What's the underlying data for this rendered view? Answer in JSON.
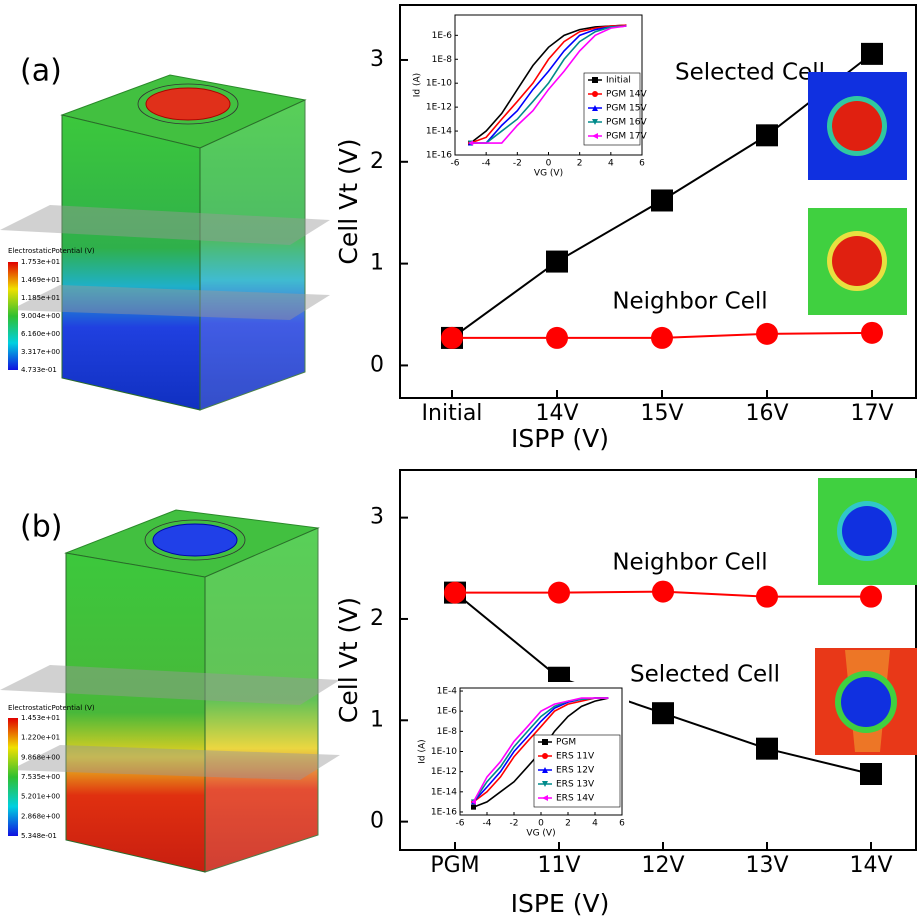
{
  "panels": [
    {
      "label": "(a)",
      "colorbar": {
        "title": "ElectrostaticPotential (V)",
        "labels": [
          "1.753e+01",
          "1.469e+01",
          "1.185e+01",
          "9.004e+00",
          "6.160e+00",
          "3.317e+00",
          "4.733e-01"
        ]
      }
    },
    {
      "label": "(b)",
      "colorbar": {
        "title": "ElectrostaticPotential (V)",
        "labels": [
          "1.453e+01",
          "1.220e+01",
          "9.868e+00",
          "7.535e+00",
          "5.201e+00",
          "2.868e+00",
          "5.348e-01"
        ]
      }
    }
  ],
  "chart_data": [
    {
      "type": "line",
      "xlabel": "ISPP (V)",
      "ylabel": "Cell Vt (V)",
      "categories": [
        "Initial",
        "14V",
        "15V",
        "16V",
        "17V"
      ],
      "ylim": [
        -0.32,
        3.54
      ],
      "yticks": [
        0,
        1,
        2,
        3
      ],
      "series": [
        {
          "name": "Selected Cell",
          "color": "#000000",
          "marker": "square",
          "values": [
            0.27,
            1.02,
            1.62,
            2.26,
            3.06
          ]
        },
        {
          "name": "Neighbor Cell",
          "color": "#ff0000",
          "marker": "circle",
          "values": [
            0.27,
            0.27,
            0.27,
            0.31,
            0.32
          ]
        }
      ]
    },
    {
      "type": "logline",
      "xlabel": "VG (V)",
      "ylabel": "Id (A)",
      "legend": "lower right",
      "x": [
        -5,
        -4,
        -3,
        -2,
        -1,
        0,
        1,
        2,
        3,
        4,
        5
      ],
      "xlim": [
        -6,
        6
      ],
      "xticks": [
        -6,
        -4,
        -2,
        0,
        2,
        4,
        6
      ],
      "ylog": true,
      "ylim": [
        1e-16,
        5e-05
      ],
      "yticks": [
        {
          "value": 1e-06,
          "label": "1E-6"
        },
        {
          "value": 1e-08,
          "label": "1E-8"
        },
        {
          "value": 1e-10,
          "label": "1E-10"
        },
        {
          "value": 1e-12,
          "label": "1E-12"
        },
        {
          "value": 1e-14,
          "label": "1E-14"
        },
        {
          "value": 1e-16,
          "label": "1E-16"
        }
      ],
      "series": [
        {
          "name": "Initial",
          "color": "#000000",
          "marker": "square",
          "values": [
            1e-15,
            1e-14,
            3e-13,
            3e-11,
            3e-09,
            1e-07,
            1e-06,
            3e-06,
            5e-06,
            6e-06,
            7e-06
          ]
        },
        {
          "name": "PGM 14V",
          "color": "#ff0000",
          "marker": "circle",
          "values": [
            1e-15,
            3e-15,
            1e-13,
            3e-12,
            1e-10,
            1e-08,
            3e-07,
            2e-06,
            4e-06,
            6e-06,
            7e-06
          ]
        },
        {
          "name": "PGM 15V",
          "color": "#0000ff",
          "marker": "triangle-up",
          "values": [
            1e-15,
            1e-15,
            3e-14,
            5e-13,
            3e-11,
            1e-09,
            5e-08,
            1e-06,
            3e-06,
            5e-06,
            6e-06
          ]
        },
        {
          "name": "PGM 16V",
          "color": "#008b8b",
          "marker": "triangle-down",
          "values": [
            1e-15,
            1e-15,
            1e-14,
            1e-13,
            3e-12,
            1e-10,
            1e-08,
            3e-07,
            2e-06,
            5e-06,
            6e-06
          ]
        },
        {
          "name": "PGM 17V",
          "color": "#ff00ff",
          "marker": "triangle-left",
          "values": [
            1e-15,
            1e-15,
            1e-15,
            3e-14,
            5e-13,
            3e-11,
            1e-09,
            5e-08,
            1e-06,
            4e-06,
            6e-06
          ]
        }
      ]
    },
    {
      "type": "line",
      "xlabel": "ISPE (V)",
      "ylabel": "Cell Vt (V)",
      "categories": [
        "PGM",
        "11V",
        "12V",
        "13V",
        "14V"
      ],
      "ylim": [
        -0.28,
        3.47
      ],
      "yticks": [
        0,
        1,
        2,
        3
      ],
      "series": [
        {
          "name": "Selected Cell",
          "color": "#000000",
          "marker": "square",
          "values": [
            2.26,
            1.42,
            1.07,
            0.72,
            0.47
          ]
        },
        {
          "name": "Neighbor Cell",
          "color": "#ff0000",
          "marker": "circle",
          "values": [
            2.26,
            2.26,
            2.27,
            2.22,
            2.22
          ]
        }
      ]
    },
    {
      "type": "logline",
      "xlabel": "VG (V)",
      "ylabel": "Id (A)",
      "legend": "lower right",
      "x": [
        -5,
        -4,
        -3,
        -2,
        -1,
        0,
        1,
        2,
        3,
        4,
        5
      ],
      "xlim": [
        -6,
        6
      ],
      "xticks": [
        -6,
        -4,
        -2,
        0,
        2,
        4,
        6
      ],
      "ylog": true,
      "ylim": [
        5e-17,
        0.0002
      ],
      "yticks": [
        {
          "value": 0.0001,
          "label": "1E-4"
        },
        {
          "value": 1e-06,
          "label": "1E-6"
        },
        {
          "value": 1e-08,
          "label": "1E-8"
        },
        {
          "value": 1e-10,
          "label": "1E-10"
        },
        {
          "value": 1e-12,
          "label": "1E-12"
        },
        {
          "value": 1e-14,
          "label": "1E-14"
        },
        {
          "value": 1e-16,
          "label": "1E-16"
        }
      ],
      "series": [
        {
          "name": "PGM",
          "color": "#000000",
          "marker": "square",
          "values": [
            3e-16,
            1e-15,
            1e-14,
            1e-13,
            3e-12,
            1e-10,
            1e-08,
            3e-07,
            3e-06,
            1e-05,
            2e-05
          ]
        },
        {
          "name": "ERS 11V",
          "color": "#ff0000",
          "marker": "circle",
          "values": [
            1e-15,
            1e-14,
            3e-13,
            3e-11,
            1e-09,
            3e-08,
            1e-06,
            5e-06,
            1e-05,
            2e-05,
            2e-05
          ]
        },
        {
          "name": "ERS 12V",
          "color": "#0000ff",
          "marker": "triangle-up",
          "values": [
            1e-15,
            3e-14,
            1e-12,
            1e-10,
            3e-09,
            1e-07,
            2e-06,
            8e-06,
            1.5e-05,
            2e-05,
            2e-05
          ]
        },
        {
          "name": "ERS 13V",
          "color": "#008b8b",
          "marker": "triangle-down",
          "values": [
            1e-15,
            1e-13,
            3e-12,
            3e-10,
            1e-08,
            3e-07,
            3e-06,
            1e-05,
            1.5e-05,
            2e-05,
            2e-05
          ]
        },
        {
          "name": "ERS 14V",
          "color": "#ff00ff",
          "marker": "triangle-left",
          "values": [
            1e-15,
            3e-13,
            1e-11,
            1e-09,
            3e-08,
            1e-06,
            5e-06,
            1e-05,
            2e-05,
            2e-05,
            2e-05
          ]
        }
      ]
    }
  ]
}
